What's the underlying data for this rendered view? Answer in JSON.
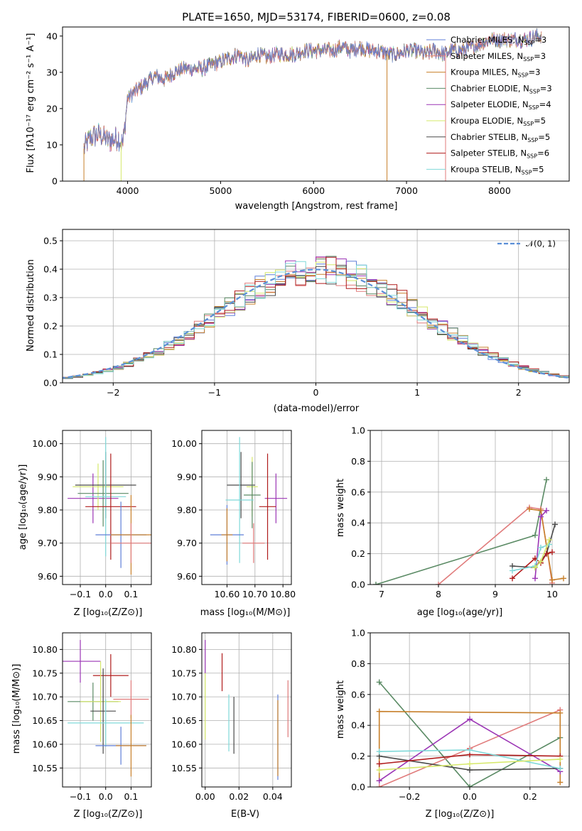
{
  "chart_data": [
    {
      "id": "spectrum",
      "type": "line",
      "title": "PLATE=1650, MJD=53174, FIBERID=0600, z=0.08",
      "xlabel": "wavelength [Angstrom, rest frame]",
      "ylabel": "Flux [fλ10⁻¹⁷ erg cm⁻² s⁻¹ A⁻¹]",
      "xlim": [
        3300,
        8750
      ],
      "ylim": [
        0,
        42.5
      ],
      "xticks": [
        4000,
        5000,
        6000,
        7000,
        8000
      ],
      "yticks": [
        0,
        10,
        20,
        30,
        40
      ],
      "legend_position": "top-right",
      "spectrum_x": [
        3530,
        3600,
        3700,
        3800,
        3900,
        3950,
        4000,
        4100,
        4200,
        4300,
        4400,
        4500,
        4600,
        4700,
        4800,
        4900,
        5000,
        5100,
        5200,
        5300,
        5400,
        5500,
        5600,
        5700,
        5800,
        5900,
        6000,
        6100,
        6200,
        6300,
        6400,
        6500,
        6600,
        6700,
        6800,
        6900,
        7000,
        7100,
        7200,
        7300,
        7400,
        7500,
        7600,
        7700,
        7800,
        7900,
        8000,
        8100,
        8200,
        8300,
        8400,
        8450
      ],
      "spectrum_y": [
        9,
        12,
        13,
        11,
        12,
        10,
        23,
        25,
        27,
        29,
        28,
        30,
        31,
        31,
        31,
        32,
        33,
        34,
        35,
        33,
        35,
        34,
        35,
        35,
        35,
        36,
        36,
        36,
        36,
        37,
        36,
        37,
        36,
        36,
        35,
        35,
        36,
        36,
        35,
        36,
        35,
        36,
        36,
        37,
        38,
        39,
        39,
        39,
        39,
        39,
        40,
        40
      ],
      "series": [
        {
          "name": "Chabrier MILES, N_SSP=3",
          "color": "#5f7fd8"
        },
        {
          "name": "Salpeter MILES, N_SSP=3",
          "color": "#e07b7b"
        },
        {
          "name": "Kroupa MILES, N_SSP=3",
          "color": "#c77f2a"
        },
        {
          "name": "Chabrier ELODIE, N_SSP=3",
          "color": "#5a8a64"
        },
        {
          "name": "Salpeter ELODIE, N_SSP=4",
          "color": "#9b35b5"
        },
        {
          "name": "Kroupa ELODIE, N_SSP=5",
          "color": "#d6e86a"
        },
        {
          "name": "Chabrier STELIB, N_SSP=5",
          "color": "#4a4a4a"
        },
        {
          "name": "Salpeter STELIB, N_SSP=6",
          "color": "#b01c1c"
        },
        {
          "name": "Kroupa STELIB, N_SSP=5",
          "color": "#7fd8d8"
        }
      ],
      "legend_labels": [
        {
          "pre": "Chabrier MILES, N",
          "sub": "SSP",
          "post": "=3"
        },
        {
          "pre": "Salpeter MILES, N",
          "sub": "SSP",
          "post": "=3"
        },
        {
          "pre": "Kroupa MILES, N",
          "sub": "SSP",
          "post": "=3"
        },
        {
          "pre": "Chabrier ELODIE, N",
          "sub": "SSP",
          "post": "=3"
        },
        {
          "pre": "Salpeter ELODIE, N",
          "sub": "SSP",
          "post": "=4"
        },
        {
          "pre": "Kroupa ELODIE, N",
          "sub": "SSP",
          "post": "=5"
        },
        {
          "pre": "Chabrier STELIB, N",
          "sub": "SSP",
          "post": "=5"
        },
        {
          "pre": "Salpeter STELIB, N",
          "sub": "SSP",
          "post": "=6"
        },
        {
          "pre": "Kroupa STELIB, N",
          "sub": "SSP",
          "post": "=5"
        }
      ]
    },
    {
      "id": "residuals",
      "type": "bar",
      "xlabel": "(data-model)/error",
      "ylabel": "Normed distribution",
      "xlim": [
        -2.5,
        2.5
      ],
      "ylim": [
        0,
        0.54
      ],
      "xticks": [
        -2,
        -1,
        0,
        1,
        2
      ],
      "yticks": [
        0.0,
        0.1,
        0.2,
        0.3,
        0.4,
        0.5
      ],
      "legend": "𝒩(0, 1)",
      "legend_position": "top-right",
      "bin_width": 0.1,
      "gaussian_color": "#5b8fd6"
    },
    {
      "id": "age_vs_Z",
      "type": "scatter",
      "xlabel": "Z [log₁₀(Z/Z⊙)]",
      "ylabel": "age  [log₁₀(age/yr)]",
      "xlim": [
        -0.17,
        0.18
      ],
      "ylim": [
        9.575,
        10.04
      ],
      "xticks": [
        -0.1,
        0.0,
        0.1
      ],
      "yticks": [
        9.6,
        9.7,
        9.8,
        9.9,
        10.0
      ],
      "points": [
        {
          "x": -0.05,
          "y": 9.835,
          "xerr": 0.1,
          "yerr": 0.075,
          "color": "#9b35b5"
        },
        {
          "x": -0.03,
          "y": 9.87,
          "xerr": 0.1,
          "yerr": 0.07,
          "color": "#d6e86a"
        },
        {
          "x": 0.0,
          "y": 9.875,
          "xerr": 0.12,
          "yerr": 0.1,
          "color": "#4a4a4a"
        },
        {
          "x": -0.01,
          "y": 9.85,
          "xerr": 0.1,
          "yerr": 0.1,
          "color": "#5a8a64"
        },
        {
          "x": 0.0,
          "y": 9.84,
          "xerr": 0.08,
          "yerr": 0.18,
          "color": "#7fd8d8"
        },
        {
          "x": 0.02,
          "y": 9.81,
          "xerr": 0.1,
          "yerr": 0.16,
          "color": "#b01c1c"
        },
        {
          "x": 0.06,
          "y": 9.725,
          "xerr": 0.1,
          "yerr": 0.1,
          "color": "#5f7fd8"
        },
        {
          "x": 0.1,
          "y": 9.725,
          "xerr": 0.08,
          "yerr": 0.12,
          "color": "#c77f2a"
        },
        {
          "x": 0.1,
          "y": 9.7,
          "xerr": 0.08,
          "yerr": 0.06,
          "color": "#e07b7b"
        }
      ]
    },
    {
      "id": "age_vs_mass",
      "type": "scatter",
      "xlabel": "mass [log₁₀(M/M⊙)]",
      "ylabel": "",
      "xlim": [
        10.51,
        10.83
      ],
      "ylim": [
        9.575,
        10.04
      ],
      "xticks": [
        10.6,
        10.7,
        10.8
      ],
      "yticks": [
        9.6,
        9.7,
        9.8,
        9.9,
        10.0
      ],
      "points": [
        {
          "x": 10.775,
          "y": 9.835,
          "xerr": 0.04,
          "yerr": 0.075,
          "color": "#9b35b5"
        },
        {
          "x": 10.69,
          "y": 9.87,
          "xerr": 0.02,
          "yerr": 0.09,
          "color": "#d6e86a"
        },
        {
          "x": 10.65,
          "y": 9.875,
          "xerr": 0.05,
          "yerr": 0.1,
          "color": "#4a4a4a"
        },
        {
          "x": 10.69,
          "y": 9.845,
          "xerr": 0.03,
          "yerr": 0.1,
          "color": "#5a8a64"
        },
        {
          "x": 10.645,
          "y": 9.83,
          "xerr": 0.05,
          "yerr": 0.19,
          "color": "#7fd8d8"
        },
        {
          "x": 10.745,
          "y": 9.81,
          "xerr": 0.03,
          "yerr": 0.16,
          "color": "#b01c1c"
        },
        {
          "x": 10.6,
          "y": 9.725,
          "xerr": 0.06,
          "yerr": 0.09,
          "color": "#5f7fd8"
        },
        {
          "x": 10.6,
          "y": 9.725,
          "xerr": 0.02,
          "yerr": 0.08,
          "color": "#c77f2a"
        },
        {
          "x": 10.695,
          "y": 9.7,
          "xerr": 0.04,
          "yerr": 0.06,
          "color": "#e07b7b"
        }
      ]
    },
    {
      "id": "weight_vs_age",
      "type": "line",
      "xlabel": "age  [log₁₀(age/yr)]",
      "ylabel": "mass weight",
      "xlim": [
        6.8,
        10.3
      ],
      "ylim": [
        0,
        1.0
      ],
      "xticks": [
        7,
        8,
        9,
        10
      ],
      "yticks": [
        0.0,
        0.2,
        0.4,
        0.6,
        0.8,
        1.0
      ],
      "series": [
        {
          "color": "#5a8a64",
          "x": [
            6.9,
            9.7,
            9.9
          ],
          "y": [
            0.0,
            0.32,
            0.68
          ]
        },
        {
          "color": "#e07b7b",
          "x": [
            8.0,
            9.6,
            9.8,
            10.0
          ],
          "y": [
            0.0,
            0.5,
            0.49,
            0.01
          ]
        },
        {
          "color": "#c77f2a",
          "x": [
            9.6,
            9.8,
            10.0,
            10.2
          ],
          "y": [
            0.49,
            0.48,
            0.03,
            0.04
          ]
        },
        {
          "color": "#9b35b5",
          "x": [
            9.7,
            9.8,
            9.9
          ],
          "y": [
            0.04,
            0.44,
            0.48
          ]
        },
        {
          "color": "#4a4a4a",
          "x": [
            9.3,
            9.7,
            9.9,
            10.05
          ],
          "y": [
            0.12,
            0.11,
            0.2,
            0.39
          ]
        },
        {
          "color": "#b01c1c",
          "x": [
            9.3,
            9.7,
            9.8,
            9.9,
            10.0
          ],
          "y": [
            0.04,
            0.17,
            0.14,
            0.2,
            0.21
          ]
        },
        {
          "color": "#7fd8d8",
          "x": [
            9.3,
            9.7,
            9.8,
            9.95
          ],
          "y": [
            0.09,
            0.12,
            0.24,
            0.26
          ]
        },
        {
          "color": "#d6e86a",
          "x": [
            9.7,
            9.8,
            9.95
          ],
          "y": [
            0.11,
            0.15,
            0.29
          ]
        }
      ]
    },
    {
      "id": "mass_vs_Z",
      "type": "scatter",
      "xlabel": "Z [log₁₀(Z/Z⊙)]",
      "ylabel": "mass [log₁₀(M/M⊙)]",
      "xlim": [
        -0.17,
        0.18
      ],
      "ylim": [
        10.51,
        10.835
      ],
      "xticks": [
        -0.1,
        0.0,
        0.1
      ],
      "yticks": [
        10.55,
        10.6,
        10.65,
        10.7,
        10.75,
        10.8
      ],
      "points": [
        {
          "x": -0.1,
          "y": 10.775,
          "xerr": 0.08,
          "yerr": 0.045,
          "color": "#9b35b5"
        },
        {
          "x": 0.02,
          "y": 10.745,
          "xerr": 0.07,
          "yerr": 0.045,
          "color": "#b01c1c"
        },
        {
          "x": -0.05,
          "y": 10.69,
          "xerr": 0.1,
          "yerr": 0.04,
          "color": "#5a8a64"
        },
        {
          "x": -0.02,
          "y": 10.69,
          "xerr": 0.08,
          "yerr": 0.085,
          "color": "#d6e86a"
        },
        {
          "x": -0.01,
          "y": 10.67,
          "xerr": 0.05,
          "yerr": 0.09,
          "color": "#4a4a4a"
        },
        {
          "x": 0.1,
          "y": 10.695,
          "xerr": 0.07,
          "yerr": 0.04,
          "color": "#e07b7b"
        },
        {
          "x": 0.0,
          "y": 10.645,
          "xerr": 0.15,
          "yerr": 0.05,
          "color": "#7fd8d8"
        },
        {
          "x": 0.06,
          "y": 10.597,
          "xerr": 0.1,
          "yerr": 0.04,
          "color": "#5f7fd8"
        },
        {
          "x": 0.1,
          "y": 10.597,
          "xerr": 0.06,
          "yerr": 0.065,
          "color": "#c77f2a"
        }
      ]
    },
    {
      "id": "mass_vs_EBV",
      "type": "scatter",
      "xlabel": "E(B-V)",
      "ylabel": "",
      "xlim": [
        -0.002,
        0.051
      ],
      "ylim": [
        10.51,
        10.835
      ],
      "xticks": [
        0.0,
        0.02,
        0.04
      ],
      "yticks": [
        10.55,
        10.6,
        10.65,
        10.7,
        10.75,
        10.8
      ],
      "points": [
        {
          "x": 0.0,
          "y": 10.785,
          "xerr": 0,
          "yerr": 0.035,
          "color": "#9b35b5"
        },
        {
          "x": 0.01,
          "y": 10.752,
          "xerr": 0,
          "yerr": 0.04,
          "color": "#b01c1c"
        },
        {
          "x": 0.0,
          "y": 10.68,
          "xerr": 0,
          "yerr": 0.07,
          "color": "#d6e86a"
        },
        {
          "x": 0.014,
          "y": 10.645,
          "xerr": 0,
          "yerr": 0.06,
          "color": "#7fd8d8"
        },
        {
          "x": 0.017,
          "y": 10.64,
          "xerr": 0,
          "yerr": 0.06,
          "color": "#4a4a4a"
        },
        {
          "x": 0.043,
          "y": 10.615,
          "xerr": 0,
          "yerr": 0.09,
          "color": "#5f7fd8"
        },
        {
          "x": 0.043,
          "y": 10.613,
          "xerr": 0,
          "yerr": 0.08,
          "color": "#c77f2a"
        },
        {
          "x": 0.049,
          "y": 10.675,
          "xerr": 0,
          "yerr": 0.06,
          "color": "#e07b7b"
        }
      ]
    },
    {
      "id": "weight_vs_Z",
      "type": "line",
      "xlabel": "Z [log₁₀(Z/Z⊙)]",
      "ylabel": "mass weight",
      "xlim": [
        -0.33,
        0.33
      ],
      "ylim": [
        0,
        1.0
      ],
      "xticks": [
        -0.2,
        0.0,
        0.2
      ],
      "yticks": [
        0.0,
        0.2,
        0.4,
        0.6,
        0.8,
        1.0
      ],
      "series": [
        {
          "color": "#5a8a64",
          "x": [
            -0.3,
            0.0,
            0.3
          ],
          "y": [
            0.68,
            0.0,
            0.32
          ]
        },
        {
          "color": "#e07b7b",
          "x": [
            -0.3,
            0.0,
            0.3
          ],
          "y": [
            0.0,
            0.25,
            0.5
          ]
        },
        {
          "color": "#c77f2a",
          "x": [
            -0.3,
            -0.3,
            0.3,
            0.3
          ],
          "y": [
            0.04,
            0.49,
            0.48,
            0.03
          ]
        },
        {
          "color": "#9b35b5",
          "x": [
            -0.3,
            0.0,
            0.3
          ],
          "y": [
            0.04,
            0.44,
            0.1
          ]
        },
        {
          "color": "#4a4a4a",
          "x": [
            -0.3,
            0.0,
            0.3
          ],
          "y": [
            0.2,
            0.11,
            0.12
          ]
        },
        {
          "color": "#b01c1c",
          "x": [
            -0.3,
            0.0,
            0.3
          ],
          "y": [
            0.15,
            0.21,
            0.2
          ]
        },
        {
          "color": "#7fd8d8",
          "x": [
            -0.3,
            0.0,
            0.3
          ],
          "y": [
            0.23,
            0.24,
            0.12
          ]
        },
        {
          "color": "#d6e86a",
          "x": [
            -0.3,
            0.0,
            0.3
          ],
          "y": [
            0.11,
            0.15,
            0.18
          ]
        }
      ]
    }
  ]
}
